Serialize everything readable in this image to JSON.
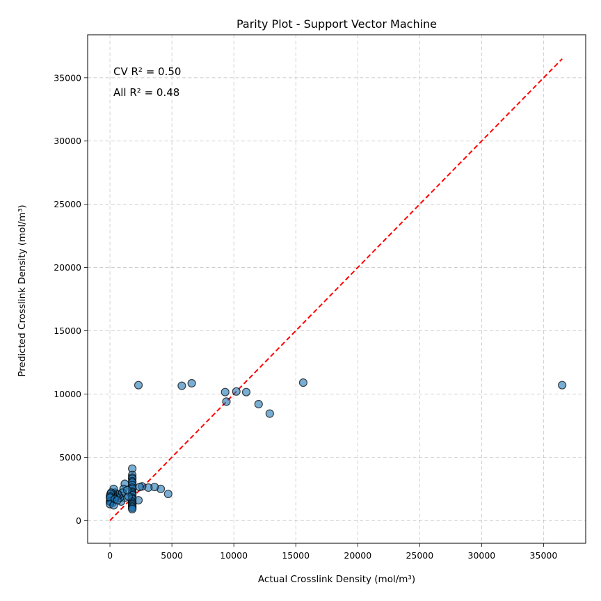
{
  "chart_data": {
    "type": "scatter",
    "title": "Parity Plot - Support Vector Machine",
    "xlabel": "Actual Crosslink Density (mol/m³)",
    "ylabel": "Predicted Crosslink Density (mol/m³)",
    "xlim": [
      -1800,
      38400
    ],
    "ylim": [
      -1800,
      38400
    ],
    "xticks": [
      0,
      5000,
      10000,
      15000,
      20000,
      25000,
      30000,
      35000
    ],
    "yticks": [
      0,
      5000,
      10000,
      15000,
      20000,
      25000,
      30000,
      35000
    ],
    "grid": true,
    "annotations": {
      "cv_label": "CV R² = 0.50",
      "all_label": "All R² = 0.48"
    },
    "parity_line": {
      "from": [
        0,
        0
      ],
      "to": [
        36500,
        36500
      ],
      "color": "#ff0000",
      "style": "dashed"
    },
    "colors": {
      "point_fill": "#1f77b4",
      "point_edge": "#000000",
      "parity": "#ff0000"
    },
    "x": [
      2300,
      5800,
      6600,
      9300,
      10200,
      11000,
      15600,
      36500,
      9400,
      12000,
      12900,
      4700,
      4100,
      3600,
      3100,
      2600,
      2400,
      2300,
      1800,
      1800,
      1800,
      1800,
      1800,
      1800,
      1800,
      1800,
      1800,
      1800,
      1800,
      1800,
      1800,
      1800,
      1800,
      1800,
      1800,
      1800,
      1800,
      1800,
      1800,
      1800,
      1200,
      1200,
      1100,
      1000,
      900,
      800,
      700,
      600,
      500,
      400,
      300,
      300,
      250,
      200,
      200,
      150,
      100,
      100,
      100,
      50,
      50,
      50,
      0,
      0,
      0,
      0,
      300,
      400,
      600,
      1500,
      1400
    ],
    "y": [
      10700,
      10650,
      10850,
      10150,
      10200,
      10150,
      10900,
      10700,
      9400,
      9200,
      8450,
      2100,
      2500,
      2650,
      2600,
      2700,
      2650,
      1600,
      4100,
      3600,
      3400,
      3300,
      3100,
      3000,
      2800,
      2600,
      2500,
      2300,
      2200,
      2100,
      2000,
      1800,
      1700,
      1500,
      1400,
      1300,
      1200,
      1100,
      1000,
      900,
      2900,
      1800,
      2500,
      2200,
      1500,
      1800,
      2000,
      2100,
      1900,
      2200,
      1800,
      2500,
      2100,
      2000,
      1400,
      1700,
      1600,
      1900,
      2200,
      1900,
      1500,
      2100,
      1900,
      1500,
      1800,
      1300,
      1200,
      1700,
      1600,
      1900,
      2400
    ]
  }
}
